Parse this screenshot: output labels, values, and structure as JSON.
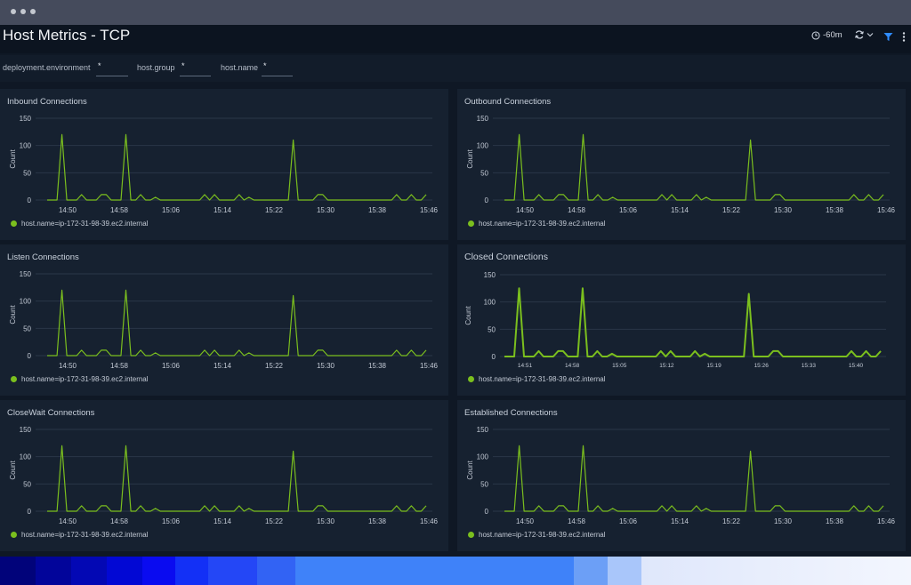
{
  "page": {
    "title": "Host Metrics - TCP"
  },
  "toolbar": {
    "time_range": "-60m",
    "refresh_icon": "refresh-icon",
    "filter_icon": "filter-icon",
    "more_icon": "more-vertical-icon"
  },
  "filters": [
    {
      "label": "deployment.environment",
      "value": "*"
    },
    {
      "label": "host.group",
      "value": "*"
    },
    {
      "label": "host.name",
      "value": "*"
    }
  ],
  "colors": {
    "series": "#7bbf1e",
    "grid": "#2a3647",
    "panel": "#162130",
    "accent_filter": "#2f8cff"
  },
  "panels": [
    {
      "title": "Inbound Connections",
      "legend": "host.name=ip-172-31-98-39.ec2.internal"
    },
    {
      "title": "Outbound Connections",
      "legend": "host.name=ip-172-31-98-39.ec2.internal"
    },
    {
      "title": "Listen Connections",
      "legend": "host.name=ip-172-31-98-39.ec2.internal"
    },
    {
      "title": "Closed Connections",
      "legend": "host.name=ip-172-31-98-39.ec2.internal"
    },
    {
      "title": "CloseWait Connections",
      "legend": "host.name=ip-172-31-98-39.ec2.internal"
    },
    {
      "title": "Established Connections",
      "legend": "host.name=ip-172-31-98-39.ec2.internal"
    }
  ],
  "chart_data": [
    {
      "type": "line",
      "title": "Inbound Connections",
      "ylabel": "Count",
      "ylim": [
        0,
        150
      ],
      "yticks": [
        0,
        50,
        100,
        150
      ],
      "xticks": [
        "14:50",
        "14:58",
        "15:06",
        "15:14",
        "15:22",
        "15:30",
        "15:38",
        "15:46"
      ],
      "series": [
        {
          "name": "host.name=ip-172-31-98-39.ec2.internal",
          "values": [
            0,
            0,
            0,
            120,
            0,
            0,
            0,
            10,
            0,
            0,
            0,
            10,
            10,
            0,
            0,
            0,
            120,
            0,
            0,
            10,
            0,
            0,
            5,
            0,
            0,
            0,
            0,
            0,
            0,
            0,
            0,
            0,
            10,
            0,
            10,
            0,
            0,
            0,
            0,
            10,
            0,
            5,
            0,
            0,
            0,
            0,
            0,
            0,
            0,
            0,
            110,
            0,
            0,
            0,
            0,
            10,
            10,
            0,
            0,
            0,
            0,
            0,
            0,
            0,
            0,
            0,
            0,
            0,
            0,
            0,
            0,
            10,
            0,
            0,
            10,
            0,
            0,
            10
          ]
        }
      ]
    },
    {
      "type": "line",
      "title": "Outbound Connections",
      "ylabel": "Count",
      "ylim": [
        0,
        150
      ],
      "yticks": [
        0,
        50,
        100,
        150
      ],
      "xticks": [
        "14:50",
        "14:58",
        "15:06",
        "15:14",
        "15:22",
        "15:30",
        "15:38",
        "15:46"
      ],
      "series": [
        {
          "name": "host.name=ip-172-31-98-39.ec2.internal",
          "values": [
            0,
            0,
            0,
            120,
            0,
            0,
            0,
            10,
            0,
            0,
            0,
            10,
            10,
            0,
            0,
            0,
            120,
            0,
            0,
            10,
            0,
            0,
            5,
            0,
            0,
            0,
            0,
            0,
            0,
            0,
            0,
            0,
            10,
            0,
            10,
            0,
            0,
            0,
            0,
            10,
            0,
            5,
            0,
            0,
            0,
            0,
            0,
            0,
            0,
            0,
            110,
            0,
            0,
            0,
            0,
            10,
            10,
            0,
            0,
            0,
            0,
            0,
            0,
            0,
            0,
            0,
            0,
            0,
            0,
            0,
            0,
            10,
            0,
            0,
            10,
            0,
            0,
            10
          ]
        }
      ]
    },
    {
      "type": "line",
      "title": "Listen Connections",
      "ylabel": "Count",
      "ylim": [
        0,
        150
      ],
      "yticks": [
        0,
        50,
        100,
        150
      ],
      "xticks": [
        "14:50",
        "14:58",
        "15:06",
        "15:14",
        "15:22",
        "15:30",
        "15:38",
        "15:46"
      ],
      "series": [
        {
          "name": "host.name=ip-172-31-98-39.ec2.internal",
          "values": [
            0,
            0,
            0,
            120,
            0,
            0,
            0,
            10,
            0,
            0,
            0,
            10,
            10,
            0,
            0,
            0,
            120,
            0,
            0,
            10,
            0,
            0,
            5,
            0,
            0,
            0,
            0,
            0,
            0,
            0,
            0,
            0,
            10,
            0,
            10,
            0,
            0,
            0,
            0,
            10,
            0,
            5,
            0,
            0,
            0,
            0,
            0,
            0,
            0,
            0,
            110,
            0,
            0,
            0,
            0,
            10,
            10,
            0,
            0,
            0,
            0,
            0,
            0,
            0,
            0,
            0,
            0,
            0,
            0,
            0,
            0,
            10,
            0,
            0,
            10,
            0,
            0,
            10
          ]
        }
      ]
    },
    {
      "type": "line",
      "title": "Closed Connections",
      "ylabel": "Count",
      "ylim": [
        0,
        150
      ],
      "yticks": [
        0,
        50,
        100,
        150
      ],
      "xticks": [
        "14:51",
        "14:58",
        "15:05",
        "15:12",
        "15:19",
        "15:26",
        "15:33",
        "15:40"
      ],
      "series": [
        {
          "name": "host.name=ip-172-31-98-39.ec2.internal",
          "values": [
            0,
            0,
            0,
            125,
            0,
            0,
            0,
            10,
            0,
            0,
            0,
            10,
            10,
            0,
            0,
            0,
            125,
            0,
            0,
            10,
            0,
            0,
            5,
            0,
            0,
            0,
            0,
            0,
            0,
            0,
            0,
            0,
            10,
            0,
            10,
            0,
            0,
            0,
            0,
            10,
            0,
            5,
            0,
            0,
            0,
            0,
            0,
            0,
            0,
            0,
            115,
            0,
            0,
            0,
            0,
            10,
            10,
            0,
            0,
            0,
            0,
            0,
            0,
            0,
            0,
            0,
            0,
            0,
            0,
            0,
            0,
            10,
            0,
            0,
            10,
            0,
            0,
            10
          ]
        }
      ]
    },
    {
      "type": "line",
      "title": "CloseWait Connections",
      "ylabel": "Count",
      "ylim": [
        0,
        150
      ],
      "yticks": [
        0,
        50,
        100,
        150
      ],
      "xticks": [
        "14:50",
        "14:58",
        "15:06",
        "15:14",
        "15:22",
        "15:30",
        "15:38",
        "15:46"
      ],
      "series": [
        {
          "name": "host.name=ip-172-31-98-39.ec2.internal",
          "values": [
            0,
            0,
            0,
            120,
            0,
            0,
            0,
            10,
            0,
            0,
            0,
            10,
            10,
            0,
            0,
            0,
            120,
            0,
            0,
            10,
            0,
            0,
            5,
            0,
            0,
            0,
            0,
            0,
            0,
            0,
            0,
            0,
            10,
            0,
            10,
            0,
            0,
            0,
            0,
            10,
            0,
            5,
            0,
            0,
            0,
            0,
            0,
            0,
            0,
            0,
            110,
            0,
            0,
            0,
            0,
            10,
            10,
            0,
            0,
            0,
            0,
            0,
            0,
            0,
            0,
            0,
            0,
            0,
            0,
            0,
            0,
            10,
            0,
            0,
            10,
            0,
            0,
            10
          ]
        }
      ]
    },
    {
      "type": "line",
      "title": "Established Connections",
      "ylabel": "Count",
      "ylim": [
        0,
        150
      ],
      "yticks": [
        0,
        50,
        100,
        150
      ],
      "xticks": [
        "14:50",
        "14:58",
        "15:06",
        "15:14",
        "15:22",
        "15:30",
        "15:38",
        "15:46"
      ],
      "series": [
        {
          "name": "host.name=ip-172-31-98-39.ec2.internal",
          "values": [
            0,
            0,
            0,
            120,
            0,
            0,
            0,
            10,
            0,
            0,
            0,
            10,
            10,
            0,
            0,
            0,
            120,
            0,
            0,
            10,
            0,
            0,
            5,
            0,
            0,
            0,
            0,
            0,
            0,
            0,
            0,
            0,
            10,
            0,
            10,
            0,
            0,
            0,
            0,
            10,
            0,
            5,
            0,
            0,
            0,
            0,
            0,
            0,
            0,
            0,
            110,
            0,
            0,
            0,
            0,
            10,
            10,
            0,
            0,
            0,
            0,
            0,
            0,
            0,
            0,
            0,
            0,
            0,
            0,
            0,
            0,
            10,
            0,
            0,
            10,
            0,
            0,
            10
          ]
        }
      ]
    }
  ]
}
